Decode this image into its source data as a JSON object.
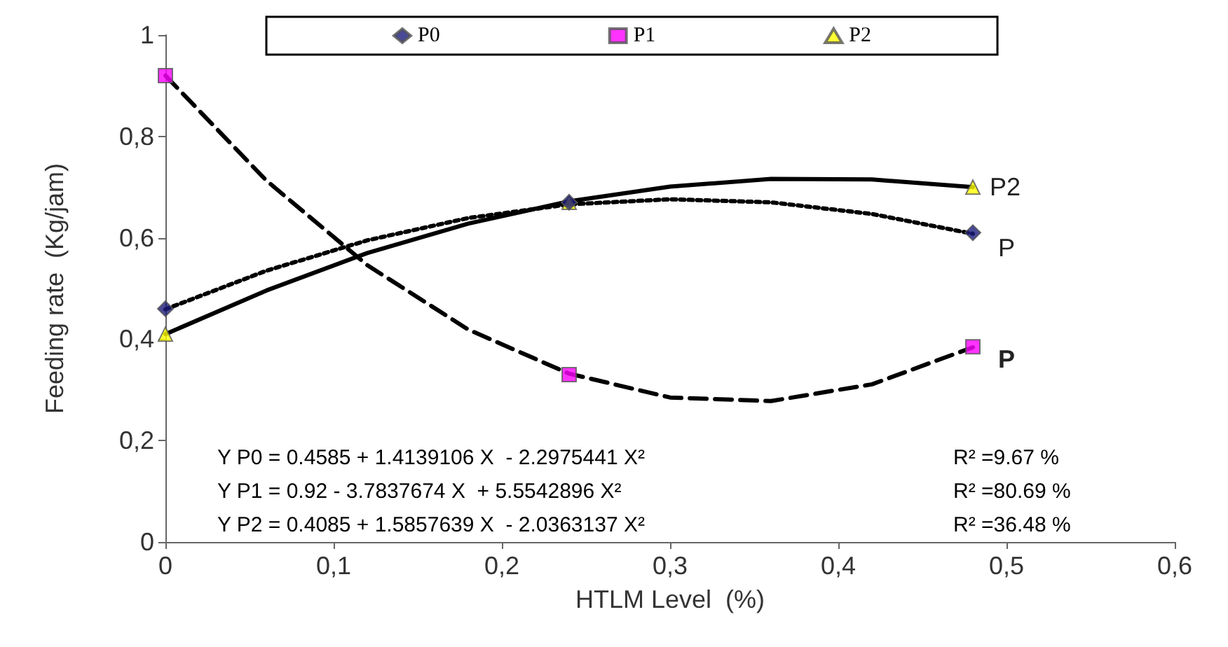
{
  "chart_data": {
    "type": "scatter",
    "xlabel": "HTLM Level  (%)",
    "ylabel": "Feeding rate  (Kg/jam)",
    "xlim": [
      0,
      0.6
    ],
    "xticks": [
      0,
      {
        "value": 0.1,
        "label": "0,1"
      },
      {
        "value": 0.2,
        "label": "0,2"
      },
      {
        "value": 0.3,
        "label": "0,3"
      },
      {
        "value": 0.4,
        "label": "0,4"
      },
      {
        "value": 0.5,
        "label": "0,5"
      },
      {
        "value": 0.6,
        "label": "0,6"
      }
    ],
    "ylim": [
      0,
      1
    ],
    "yticks": [
      0,
      {
        "value": 0.2,
        "label": "0,2"
      },
      {
        "value": 0.4,
        "label": "0,4"
      },
      {
        "value": 0.6,
        "label": "0,6"
      },
      {
        "value": 0.8,
        "label": "0,8"
      },
      1
    ],
    "grid": false,
    "legend": "top",
    "series": [
      {
        "name": "P0",
        "marker": "diamond",
        "color": "#1c1c7c",
        "x": [
          0,
          0.24,
          0.48
        ],
        "values": [
          0.46,
          0.67,
          0.61
        ]
      },
      {
        "name": "P1",
        "marker": "square",
        "color": "#ff00ff",
        "x": [
          0,
          0.24,
          0.48
        ],
        "values": [
          0.92,
          0.33,
          0.385
        ]
      },
      {
        "name": "P2",
        "marker": "triangle",
        "color": "#ffff00",
        "x": [
          0,
          0.24,
          0.48
        ],
        "values": [
          0.41,
          0.67,
          0.7
        ]
      },
      {
        "type": "line",
        "line_style": "dotted",
        "marker": "none",
        "color": "#000000",
        "x": [
          0,
          0.06,
          0.12,
          0.18,
          0.24,
          0.3,
          0.36,
          0.42,
          0.48
        ],
        "values": [
          0.459,
          0.535,
          0.595,
          0.639,
          0.666,
          0.676,
          0.67,
          0.647,
          0.608
        ]
      },
      {
        "type": "line",
        "line_style": "dashed",
        "marker": "none",
        "color": "#000000",
        "x": [
          0,
          0.06,
          0.12,
          0.18,
          0.24,
          0.3,
          0.36,
          0.42,
          0.48
        ],
        "values": [
          0.92,
          0.713,
          0.546,
          0.419,
          0.332,
          0.285,
          0.278,
          0.311,
          0.384
        ]
      },
      {
        "type": "line",
        "line_style": "solid",
        "marker": "none",
        "color": "#000000",
        "x": [
          0,
          0.06,
          0.12,
          0.18,
          0.24,
          0.3,
          0.36,
          0.42,
          0.48
        ],
        "values": [
          0.41,
          0.496,
          0.57,
          0.628,
          0.672,
          0.701,
          0.716,
          0.715,
          0.7
        ]
      }
    ],
    "annotations": [
      "P2",
      "P",
      "P",
      "Y P0 = 0.4585 + 1.4139106 X  - 2.2975441 X²",
      "R² =9.67 %",
      "Y P1 = 0.92 - 3.7837674 X  + 5.5542896 X²",
      "R² =80.69 %",
      "Y P2 = 0.4085 + 1.5857639 X  - 2.0363137 X²",
      "R² =36.48 %"
    ]
  }
}
